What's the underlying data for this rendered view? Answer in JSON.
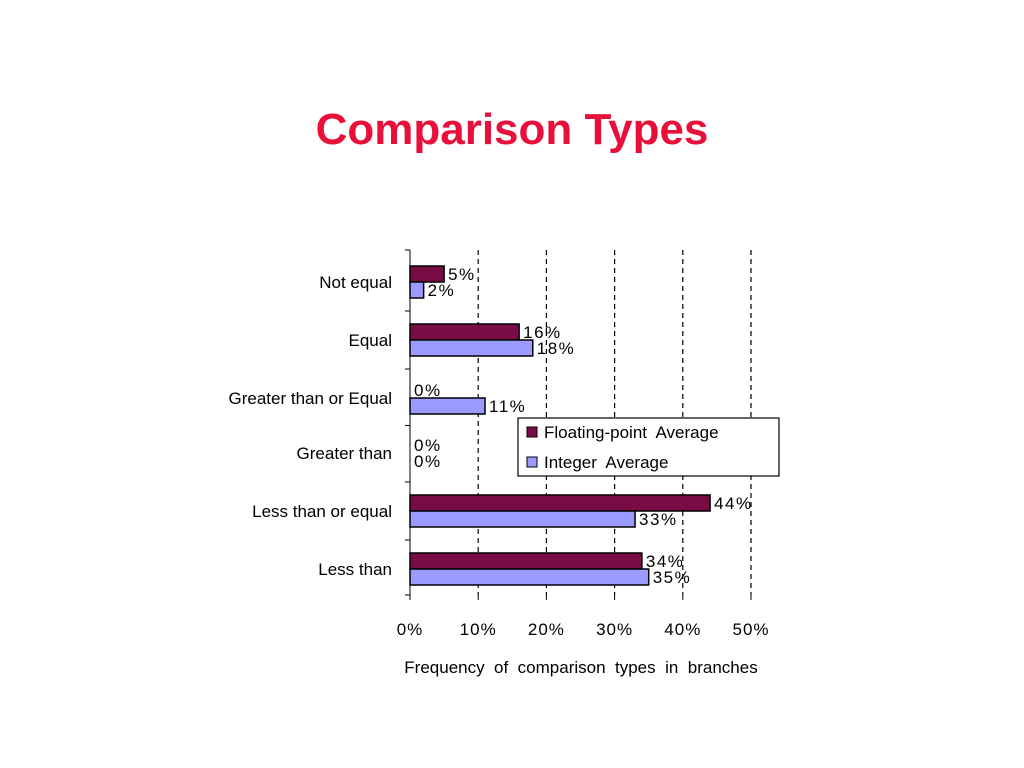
{
  "slide": {
    "title": "Comparison Types"
  },
  "chart_data": {
    "type": "bar",
    "orientation": "horizontal",
    "categories": [
      "Not equal",
      "Equal",
      "Greater than or Equal",
      "Greater than",
      "Less than or equal",
      "Less than"
    ],
    "series": [
      {
        "name": "Floating-point  Average",
        "color": "#7a0c45",
        "values": [
          5,
          16,
          0,
          0,
          44,
          34
        ],
        "labels": [
          "5%",
          "16%",
          "0%",
          "0%",
          "44%",
          "34%"
        ]
      },
      {
        "name": "Integer  Average",
        "color": "#9b9bff",
        "values": [
          2,
          18,
          11,
          0,
          33,
          35
        ],
        "labels": [
          "2%",
          "18%",
          "11%",
          "0%",
          "33%",
          "35%"
        ]
      }
    ],
    "xlabel": "Frequency  of  comparison  types  in  branches",
    "xlim": [
      0,
      50
    ],
    "xticks": [
      0,
      10,
      20,
      30,
      40,
      50
    ],
    "xtick_labels": [
      "0%",
      "10%",
      "20%",
      "30%",
      "40%",
      "50%"
    ],
    "grid": "vertical dashed",
    "legend_position": "right-middle"
  }
}
